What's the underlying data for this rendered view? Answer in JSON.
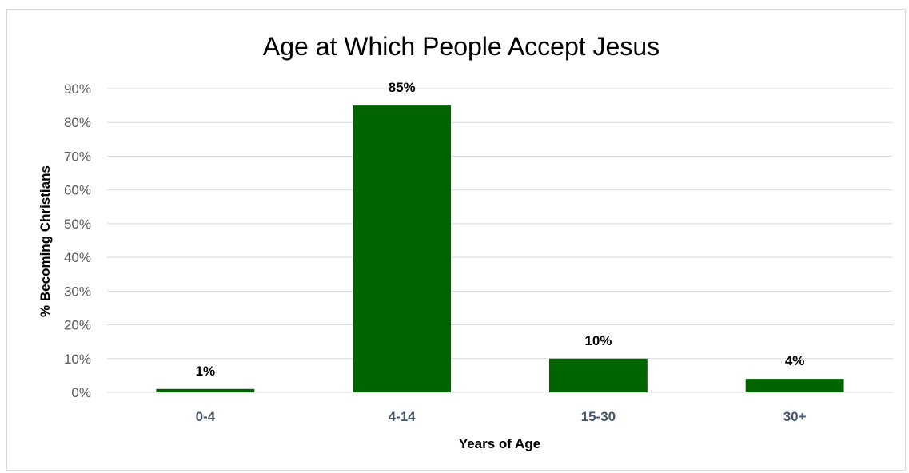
{
  "chart_data": {
    "type": "bar",
    "title": "Age at Which People Accept Jesus",
    "xlabel": "Years of Age",
    "ylabel": "% Becoming Christians",
    "categories": [
      "0-4",
      "4-14",
      "15-30",
      "30+"
    ],
    "values": [
      1,
      85,
      10,
      4
    ],
    "data_labels": [
      "1%",
      "85%",
      "10%",
      "4%"
    ],
    "ylim": [
      0,
      90
    ],
    "y_ticks": [
      0,
      10,
      20,
      30,
      40,
      50,
      60,
      70,
      80,
      90
    ],
    "y_tick_labels": [
      "0%",
      "10%",
      "20%",
      "30%",
      "40%",
      "50%",
      "60%",
      "70%",
      "80%",
      "90%"
    ],
    "grid": true,
    "legend": "none",
    "bar_color": "#006400",
    "gridline_color": "#d9d9d9"
  }
}
